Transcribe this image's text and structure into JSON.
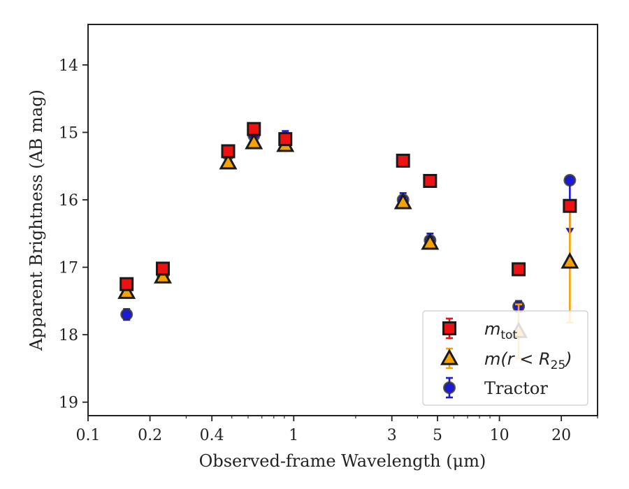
{
  "chart_data": {
    "type": "scatter",
    "title": "",
    "xlabel": "Observed-frame Wavelength (μm)",
    "ylabel": "Apparent Brightness (AB mag)",
    "xscale": "log",
    "xlim": [
      0.1,
      30
    ],
    "ylim": [
      19.2,
      13.4
    ],
    "y_inverted": true,
    "xticks": [
      {
        "value": 0.1,
        "label": "0.1"
      },
      {
        "value": 0.2,
        "label": "0.2"
      },
      {
        "value": 0.4,
        "label": "0.4"
      },
      {
        "value": 1,
        "label": "1"
      },
      {
        "value": 3,
        "label": "3"
      },
      {
        "value": 5,
        "label": "5"
      },
      {
        "value": 10,
        "label": "10"
      },
      {
        "value": 20,
        "label": "20"
      }
    ],
    "yticks": [
      {
        "value": 14,
        "label": "14"
      },
      {
        "value": 15,
        "label": "15"
      },
      {
        "value": 16,
        "label": "16"
      },
      {
        "value": 17,
        "label": "17"
      },
      {
        "value": 18,
        "label": "18"
      },
      {
        "value": 19,
        "label": "19"
      }
    ],
    "legend_position": "lower-right",
    "series": [
      {
        "name": "m_tot",
        "marker": "square",
        "color": "#ee1111",
        "edge_color": "#1a1a1a",
        "points": [
          {
            "x": 0.154,
            "y": 17.25,
            "err": 0.07
          },
          {
            "x": 0.231,
            "y": 17.02,
            "err": 0.07
          },
          {
            "x": 0.48,
            "y": 15.28,
            "err": 0.07
          },
          {
            "x": 0.64,
            "y": 14.95,
            "err": 0.07
          },
          {
            "x": 0.91,
            "y": 15.1,
            "err": 0.07
          },
          {
            "x": 3.4,
            "y": 15.42,
            "err": 0.05
          },
          {
            "x": 4.6,
            "y": 15.72,
            "err": 0.05
          },
          {
            "x": 12.4,
            "y": 17.03,
            "err": 0.06
          },
          {
            "x": 22.0,
            "y": 16.09,
            "err": 0.05
          }
        ]
      },
      {
        "name": "m(r < R_25)",
        "marker": "triangle",
        "color": "#f5a300",
        "edge_color": "#1a1a1a",
        "points": [
          {
            "x": 0.154,
            "y": 17.37,
            "err": 0.05
          },
          {
            "x": 0.231,
            "y": 17.14,
            "err": 0.05
          },
          {
            "x": 0.48,
            "y": 15.45,
            "err": 0.05
          },
          {
            "x": 0.64,
            "y": 15.15,
            "err": 0.05
          },
          {
            "x": 0.91,
            "y": 15.19,
            "err": 0.05
          },
          {
            "x": 3.4,
            "y": 16.04,
            "err": 0.05
          },
          {
            "x": 4.6,
            "y": 16.64,
            "err": 0.05
          },
          {
            "x": 12.4,
            "y": 17.95,
            "err": 0.4
          },
          {
            "x": 22.0,
            "y": 16.92,
            "err": 0.9
          }
        ]
      },
      {
        "name": "Tractor",
        "marker": "circle",
        "color": "#1a1adc",
        "edge_color": "#333333",
        "points": [
          {
            "x": 0.154,
            "y": 17.7,
            "err": 0.08
          },
          {
            "x": 0.231,
            "y": 17.12,
            "err": 0.06
          },
          {
            "x": 0.48,
            "y": 15.33,
            "err": 0.06
          },
          {
            "x": 0.64,
            "y": 15.05,
            "err": 0.06
          },
          {
            "x": 0.91,
            "y": 15.08,
            "err": 0.1
          },
          {
            "x": 3.4,
            "y": 16.0,
            "err": 0.1
          },
          {
            "x": 4.6,
            "y": 16.6,
            "err": 0.1
          },
          {
            "x": 12.4,
            "y": 17.58,
            "err": 0.08
          },
          {
            "x": 22.0,
            "y": 15.71,
            "upper_limit_to": 16.5
          }
        ]
      }
    ],
    "legend": {
      "entries": [
        {
          "series": "m_tot",
          "base": "m",
          "sub": "tot"
        },
        {
          "series": "m(r < R_25)",
          "base": "m(r < R",
          "sub": "25",
          "tail": ")"
        },
        {
          "series": "Tractor",
          "label": "Tractor"
        }
      ]
    }
  }
}
